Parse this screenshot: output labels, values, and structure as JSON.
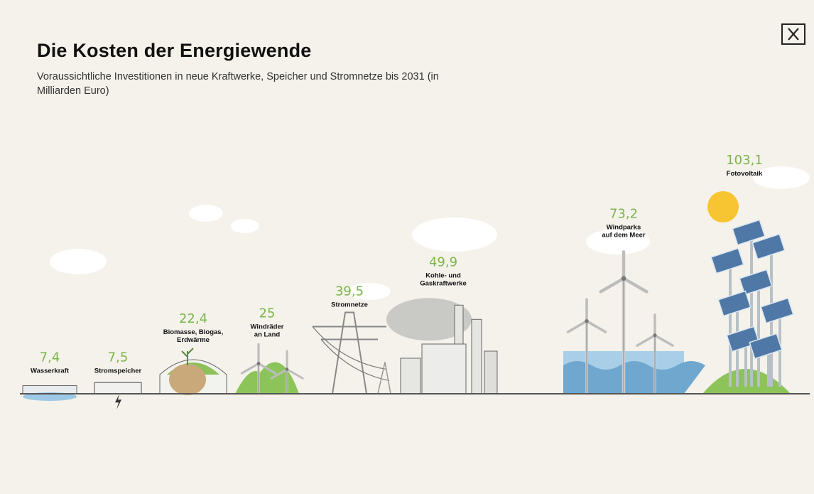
{
  "header": {
    "title": "Die Kosten der Energiewende",
    "subtitle": "Voraussichtliche Investitionen in neue Kraftwerke, Speicher und Stromnetze bis 2031 (in Milliarden Euro)"
  },
  "close_icon": "close-icon",
  "colors": {
    "background": "#f4f2ea",
    "value_green": "#7ab54b",
    "ground": "#555555"
  },
  "chart_data": {
    "type": "bar",
    "title": "Die Kosten der Energiewende",
    "subtitle": "Voraussichtliche Investitionen in neue Kraftwerke, Speicher und Stromnetze bis 2031 (in Milliarden Euro)",
    "xlabel": "",
    "ylabel": "",
    "categories": [
      [
        "Wasserkraft"
      ],
      [
        "Stromspeicher"
      ],
      [
        "Biomasse, Biogas,",
        "Erdwärme"
      ],
      [
        "Windräder",
        "an Land"
      ],
      [
        "Stromnetze"
      ],
      [
        "Kohle- und",
        "Gaskraftwerke"
      ],
      [
        "Windparks",
        "auf dem Meer"
      ],
      [
        "Fotovoltaik"
      ]
    ],
    "values": [
      7.4,
      7.5,
      22.4,
      25,
      39.5,
      49.9,
      73.2,
      103.1
    ],
    "value_labels": [
      "7,4",
      "7,5",
      "22,4",
      "25",
      "39,5",
      "49,9",
      "73,2",
      "103,1"
    ],
    "icons": [
      "dam-icon",
      "battery-storage-icon",
      "biogas-plant-icon",
      "wind-turbine-icon",
      "power-pylon-icon",
      "power-plant-icon",
      "offshore-wind-icon",
      "solar-panel-icon"
    ],
    "ylim": [
      0,
      103.1
    ],
    "grid": false,
    "legend": "none"
  }
}
